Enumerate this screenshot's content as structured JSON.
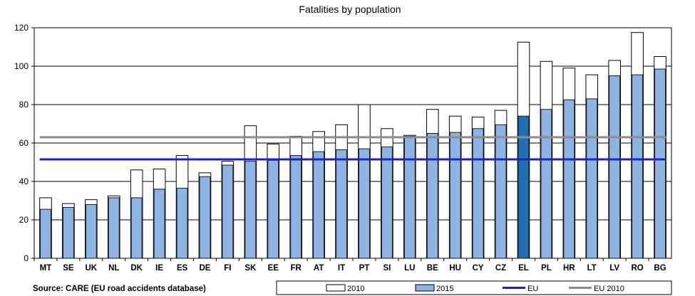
{
  "chart_data": {
    "type": "bar",
    "title": "Fatalities by population",
    "xlabel": "",
    "ylabel": "",
    "ylim": [
      0,
      120
    ],
    "yticks": [
      0,
      20,
      40,
      60,
      80,
      100,
      120
    ],
    "categories": [
      "MT",
      "SE",
      "UK",
      "NL",
      "DK",
      "IE",
      "ES",
      "DE",
      "FI",
      "SK",
      "EE",
      "FR",
      "AT",
      "IT",
      "PT",
      "SI",
      "LU",
      "BE",
      "HU",
      "CY",
      "CZ",
      "EL",
      "PL",
      "HR",
      "LT",
      "LV",
      "RO",
      "BG"
    ],
    "series": [
      {
        "name": "2010",
        "style": "outline",
        "color": "#ffffff",
        "values": [
          31.5,
          28.5,
          30.5,
          32.5,
          46,
          46.5,
          53.5,
          44.5,
          50.5,
          69,
          59.5,
          63.5,
          66,
          69.5,
          80,
          67.5,
          64,
          77.5,
          74,
          73.5,
          77,
          112.5,
          102.5,
          99,
          95.5,
          103,
          117.5,
          105
        ]
      },
      {
        "name": "2015",
        "style": "filled",
        "color": "#8eb4e3",
        "values": [
          25.5,
          26.5,
          28,
          31.5,
          31.5,
          36,
          36.5,
          42.5,
          48.5,
          50.5,
          51,
          53.5,
          55.5,
          56.5,
          57,
          58,
          63.5,
          65,
          65.5,
          67.5,
          69.5,
          74,
          77.5,
          82.5,
          83,
          95,
          95.5,
          98.5
        ]
      }
    ],
    "reference_lines": [
      {
        "name": "EU",
        "value": 51.5,
        "color": "#1f1fcc"
      },
      {
        "name": "EU 2010",
        "value": 63,
        "color": "#8c8c8c"
      }
    ],
    "highlight": {
      "category": "EL",
      "color": "#1f6fb3"
    },
    "legend": [
      "2010",
      "2015",
      "EU",
      "EU 2010"
    ],
    "legend_position": "bottom-right"
  },
  "source_note": "Source: CARE (EU road accidents database)"
}
